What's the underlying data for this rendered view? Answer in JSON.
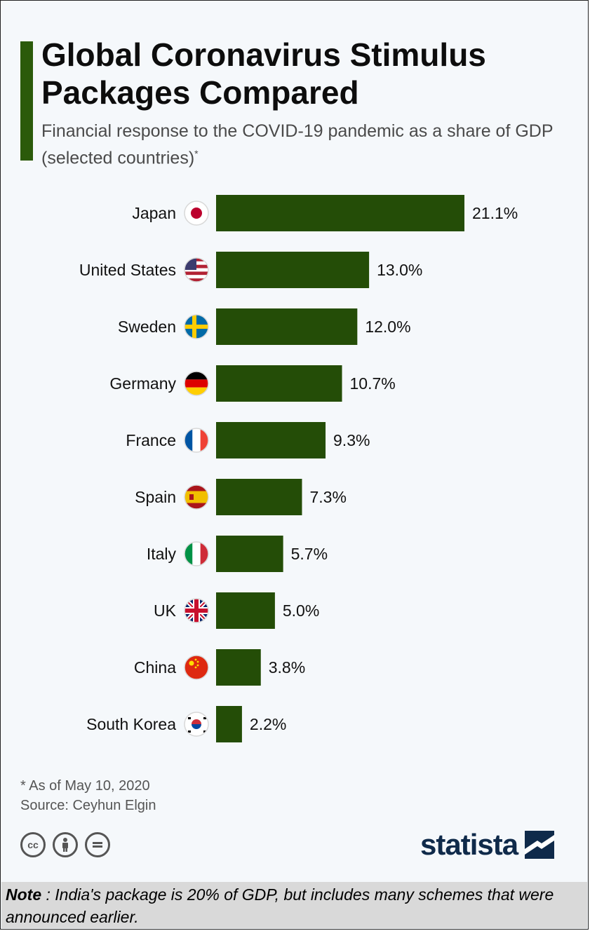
{
  "header": {
    "title": "Global Coronavirus Stimulus Packages Compared",
    "subtitle": "Financial response to the COVID-19 pandemic as a share of GDP (selected countries)",
    "subtitle_mark": "*"
  },
  "chart_data": {
    "type": "bar",
    "orientation": "horizontal",
    "title": "Global Coronavirus Stimulus Packages Compared",
    "categories": [
      "Japan",
      "United States",
      "Sweden",
      "Germany",
      "France",
      "Spain",
      "Italy",
      "UK",
      "China",
      "South Korea"
    ],
    "values": [
      21.1,
      13.0,
      12.0,
      10.7,
      9.3,
      7.3,
      5.7,
      5.0,
      3.8,
      2.2
    ],
    "value_labels": [
      "21.1%",
      "13.0%",
      "12.0%",
      "10.7%",
      "9.3%",
      "7.3%",
      "5.7%",
      "5.0%",
      "3.8%",
      "2.2%"
    ],
    "unit": "%",
    "bar_color": "#244d07",
    "grid": false
  },
  "footer": {
    "footnote": "* As of May 10, 2020",
    "source": "Source: Ceyhun Elgin",
    "license_icons": [
      "cc-icon",
      "by-icon",
      "nd-icon"
    ],
    "brand": "statista"
  },
  "note": {
    "label": "Note",
    "text": " : India's package is 20% of GDP, but includes many schemes that were announced earlier."
  }
}
